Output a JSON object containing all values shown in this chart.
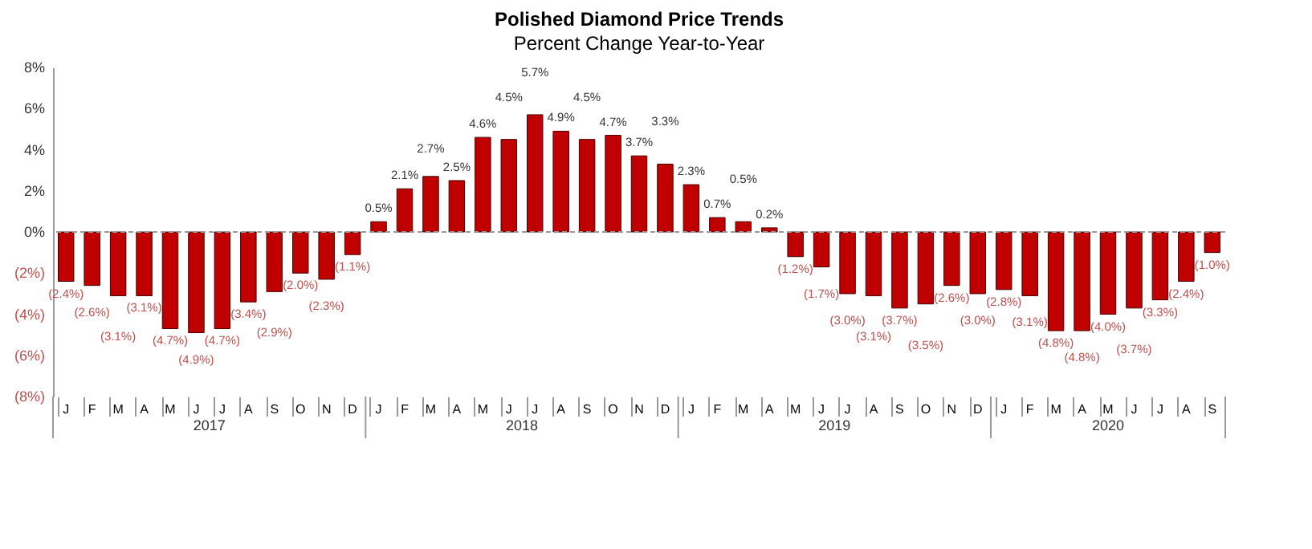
{
  "chart_data": {
    "type": "bar",
    "title": "Polished Diamond Price Trends",
    "subtitle": "Percent Change Year-to-Year",
    "categories": [
      "J",
      "F",
      "M",
      "A",
      "M",
      "J",
      "J",
      "A",
      "S",
      "O",
      "N",
      "D",
      "J",
      "F",
      "M",
      "A",
      "M",
      "J",
      "J",
      "A",
      "S",
      "O",
      "N",
      "D",
      "J",
      "F",
      "M",
      "A",
      "M",
      "J",
      "J",
      "A",
      "S",
      "O",
      "N",
      "D",
      "J",
      "F",
      "M",
      "A",
      "M",
      "J",
      "J",
      "A",
      "S"
    ],
    "values": [
      -2.4,
      -2.6,
      -3.1,
      -3.1,
      -4.7,
      -4.9,
      -4.7,
      -3.4,
      -2.9,
      -2.0,
      -2.3,
      -1.1,
      0.5,
      2.1,
      2.7,
      2.5,
      4.6,
      4.5,
      5.7,
      4.9,
      4.5,
      4.7,
      3.7,
      3.3,
      2.3,
      0.7,
      0.5,
      0.2,
      -1.2,
      -1.7,
      -3.0,
      -3.1,
      -3.7,
      -3.5,
      -2.6,
      -3.0,
      -2.8,
      -3.1,
      -4.8,
      -4.8,
      -4.0,
      -3.7,
      -3.3,
      -2.4,
      -1.0
    ],
    "value_labels": [
      "(2.4%)",
      "(2.6%)",
      "(3.1%)",
      "(3.1%)",
      "(4.7%)",
      "(4.9%)",
      "(4.7%)",
      "(3.4%)",
      "(2.9%)",
      "(2.0%)",
      "(2.3%)",
      "(1.1%)",
      "0.5%",
      "2.1%",
      "2.7%",
      "2.5%",
      "4.6%",
      "4.5%",
      "5.7%",
      "4.9%",
      "4.5%",
      "4.7%",
      "3.7%",
      "3.3%",
      "2.3%",
      "0.7%",
      "0.5%",
      "0.2%",
      "(1.2%)",
      "(1.7%)",
      "(3.0%)",
      "(3.1%)",
      "(3.7%)",
      "(3.5%)",
      "(2.6%)",
      "(3.0%)",
      "(2.8%)",
      "(3.1%)",
      "(4.8%)",
      "(4.8%)",
      "(4.0%)",
      "(3.7%)",
      "(3.3%)",
      "(2.4%)",
      "(1.0%)"
    ],
    "color": "#c00000",
    "ylim": [
      -8,
      8
    ],
    "yticks": [
      {
        "value": -8,
        "label": "(8%)"
      },
      {
        "value": -6,
        "label": "(6%)"
      },
      {
        "value": -4,
        "label": "(4%)"
      },
      {
        "value": -2,
        "label": "(2%)"
      },
      {
        "value": 0,
        "label": "0%"
      },
      {
        "value": 2,
        "label": "2%"
      },
      {
        "value": 4,
        "label": "4%"
      },
      {
        "value": 6,
        "label": "6%"
      },
      {
        "value": 8,
        "label": "8%"
      }
    ],
    "annotations": [
      "2017",
      "2018",
      "2019",
      "2020"
    ]
  }
}
